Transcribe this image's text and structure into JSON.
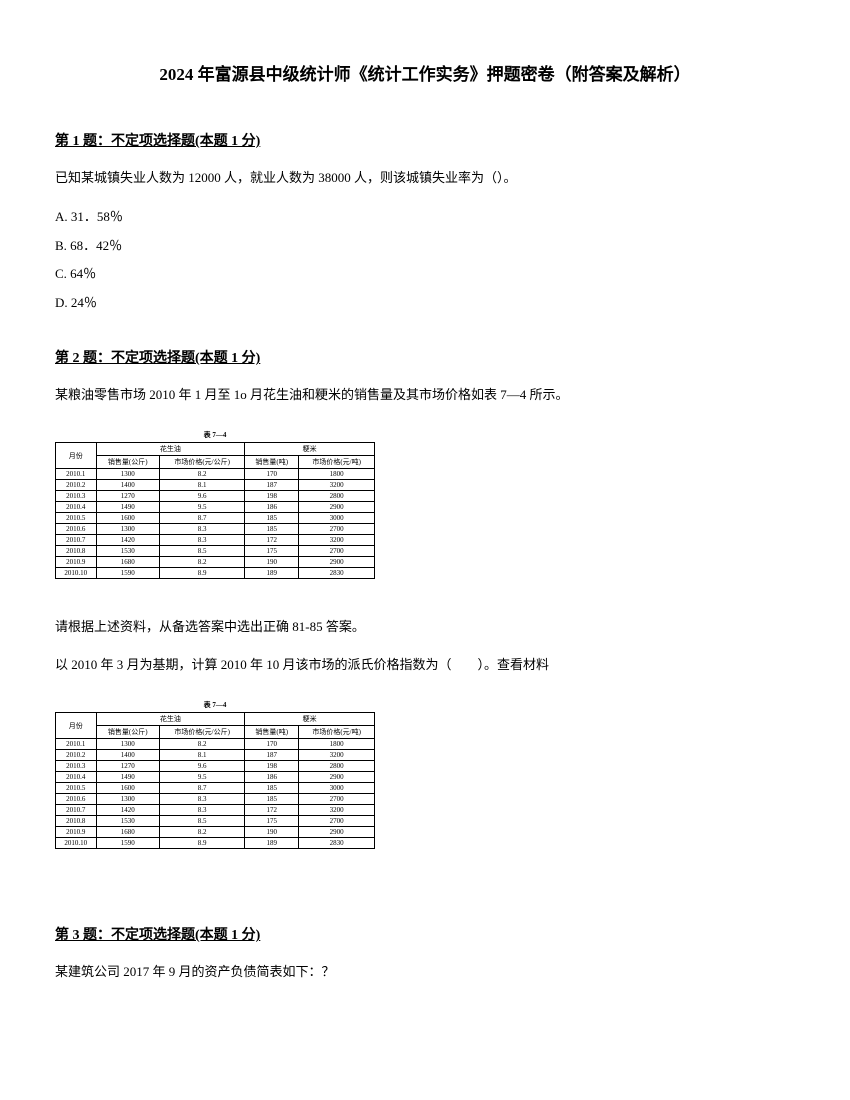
{
  "title": "2024 年富源县中级统计师《统计工作实务》押题密卷（附答案及解析）",
  "q1": {
    "header": "第 1 题：不定项选择题(本题 1 分)",
    "text": "已知某城镇失业人数为 12000 人，就业人数为 38000 人，则该城镇失业率为（）。",
    "optA": "A. 31．58％",
    "optB": "B. 68．42％",
    "optC": "C. 64％",
    "optD": "D. 24％"
  },
  "q2": {
    "header": "第 2 题：不定项选择题(本题 1 分)",
    "text1": "某粮油零售市场 2010 年 1 月至 1o 月花生油和粳米的销售量及其市场价格如表 7—4 所示。",
    "text2": "请根据上述资料，从备选答案中选出正确 81-85 答案。",
    "text3": "以 2010 年 3 月为基期，计算 2010 年 10 月该市场的派氏价格指数为（　　）。查看材料"
  },
  "q3": {
    "header": "第 3 题：不定项选择题(本题 1 分)",
    "text": "某建筑公司 2017 年 9 月的资产负债简表如下：？"
  },
  "table": {
    "caption": "表 7—4",
    "groupHeader1": "花生油",
    "groupHeader2": "粳米",
    "colMonth": "月份",
    "colSales1": "销售量(公斤)",
    "colPrice1": "市场价格(元/公斤)",
    "colSales2": "销售量(吨)",
    "colPrice2": "市场价格(元/吨)",
    "rows": [
      {
        "m": "2010.1",
        "s1": "1300",
        "p1": "8.2",
        "s2": "170",
        "p2": "1800"
      },
      {
        "m": "2010.2",
        "s1": "1400",
        "p1": "8.1",
        "s2": "187",
        "p2": "3200"
      },
      {
        "m": "2010.3",
        "s1": "1270",
        "p1": "9.6",
        "s2": "198",
        "p2": "2800"
      },
      {
        "m": "2010.4",
        "s1": "1490",
        "p1": "9.5",
        "s2": "186",
        "p2": "2900"
      },
      {
        "m": "2010.5",
        "s1": "1600",
        "p1": "8.7",
        "s2": "185",
        "p2": "3000"
      },
      {
        "m": "2010.6",
        "s1": "1300",
        "p1": "8.3",
        "s2": "185",
        "p2": "2700"
      },
      {
        "m": "2010.7",
        "s1": "1420",
        "p1": "8.3",
        "s2": "172",
        "p2": "3200"
      },
      {
        "m": "2010.8",
        "s1": "1530",
        "p1": "8.5",
        "s2": "175",
        "p2": "2700"
      },
      {
        "m": "2010.9",
        "s1": "1680",
        "p1": "8.2",
        "s2": "190",
        "p2": "2900"
      },
      {
        "m": "2010.10",
        "s1": "1590",
        "p1": "8.9",
        "s2": "189",
        "p2": "2830"
      }
    ]
  }
}
